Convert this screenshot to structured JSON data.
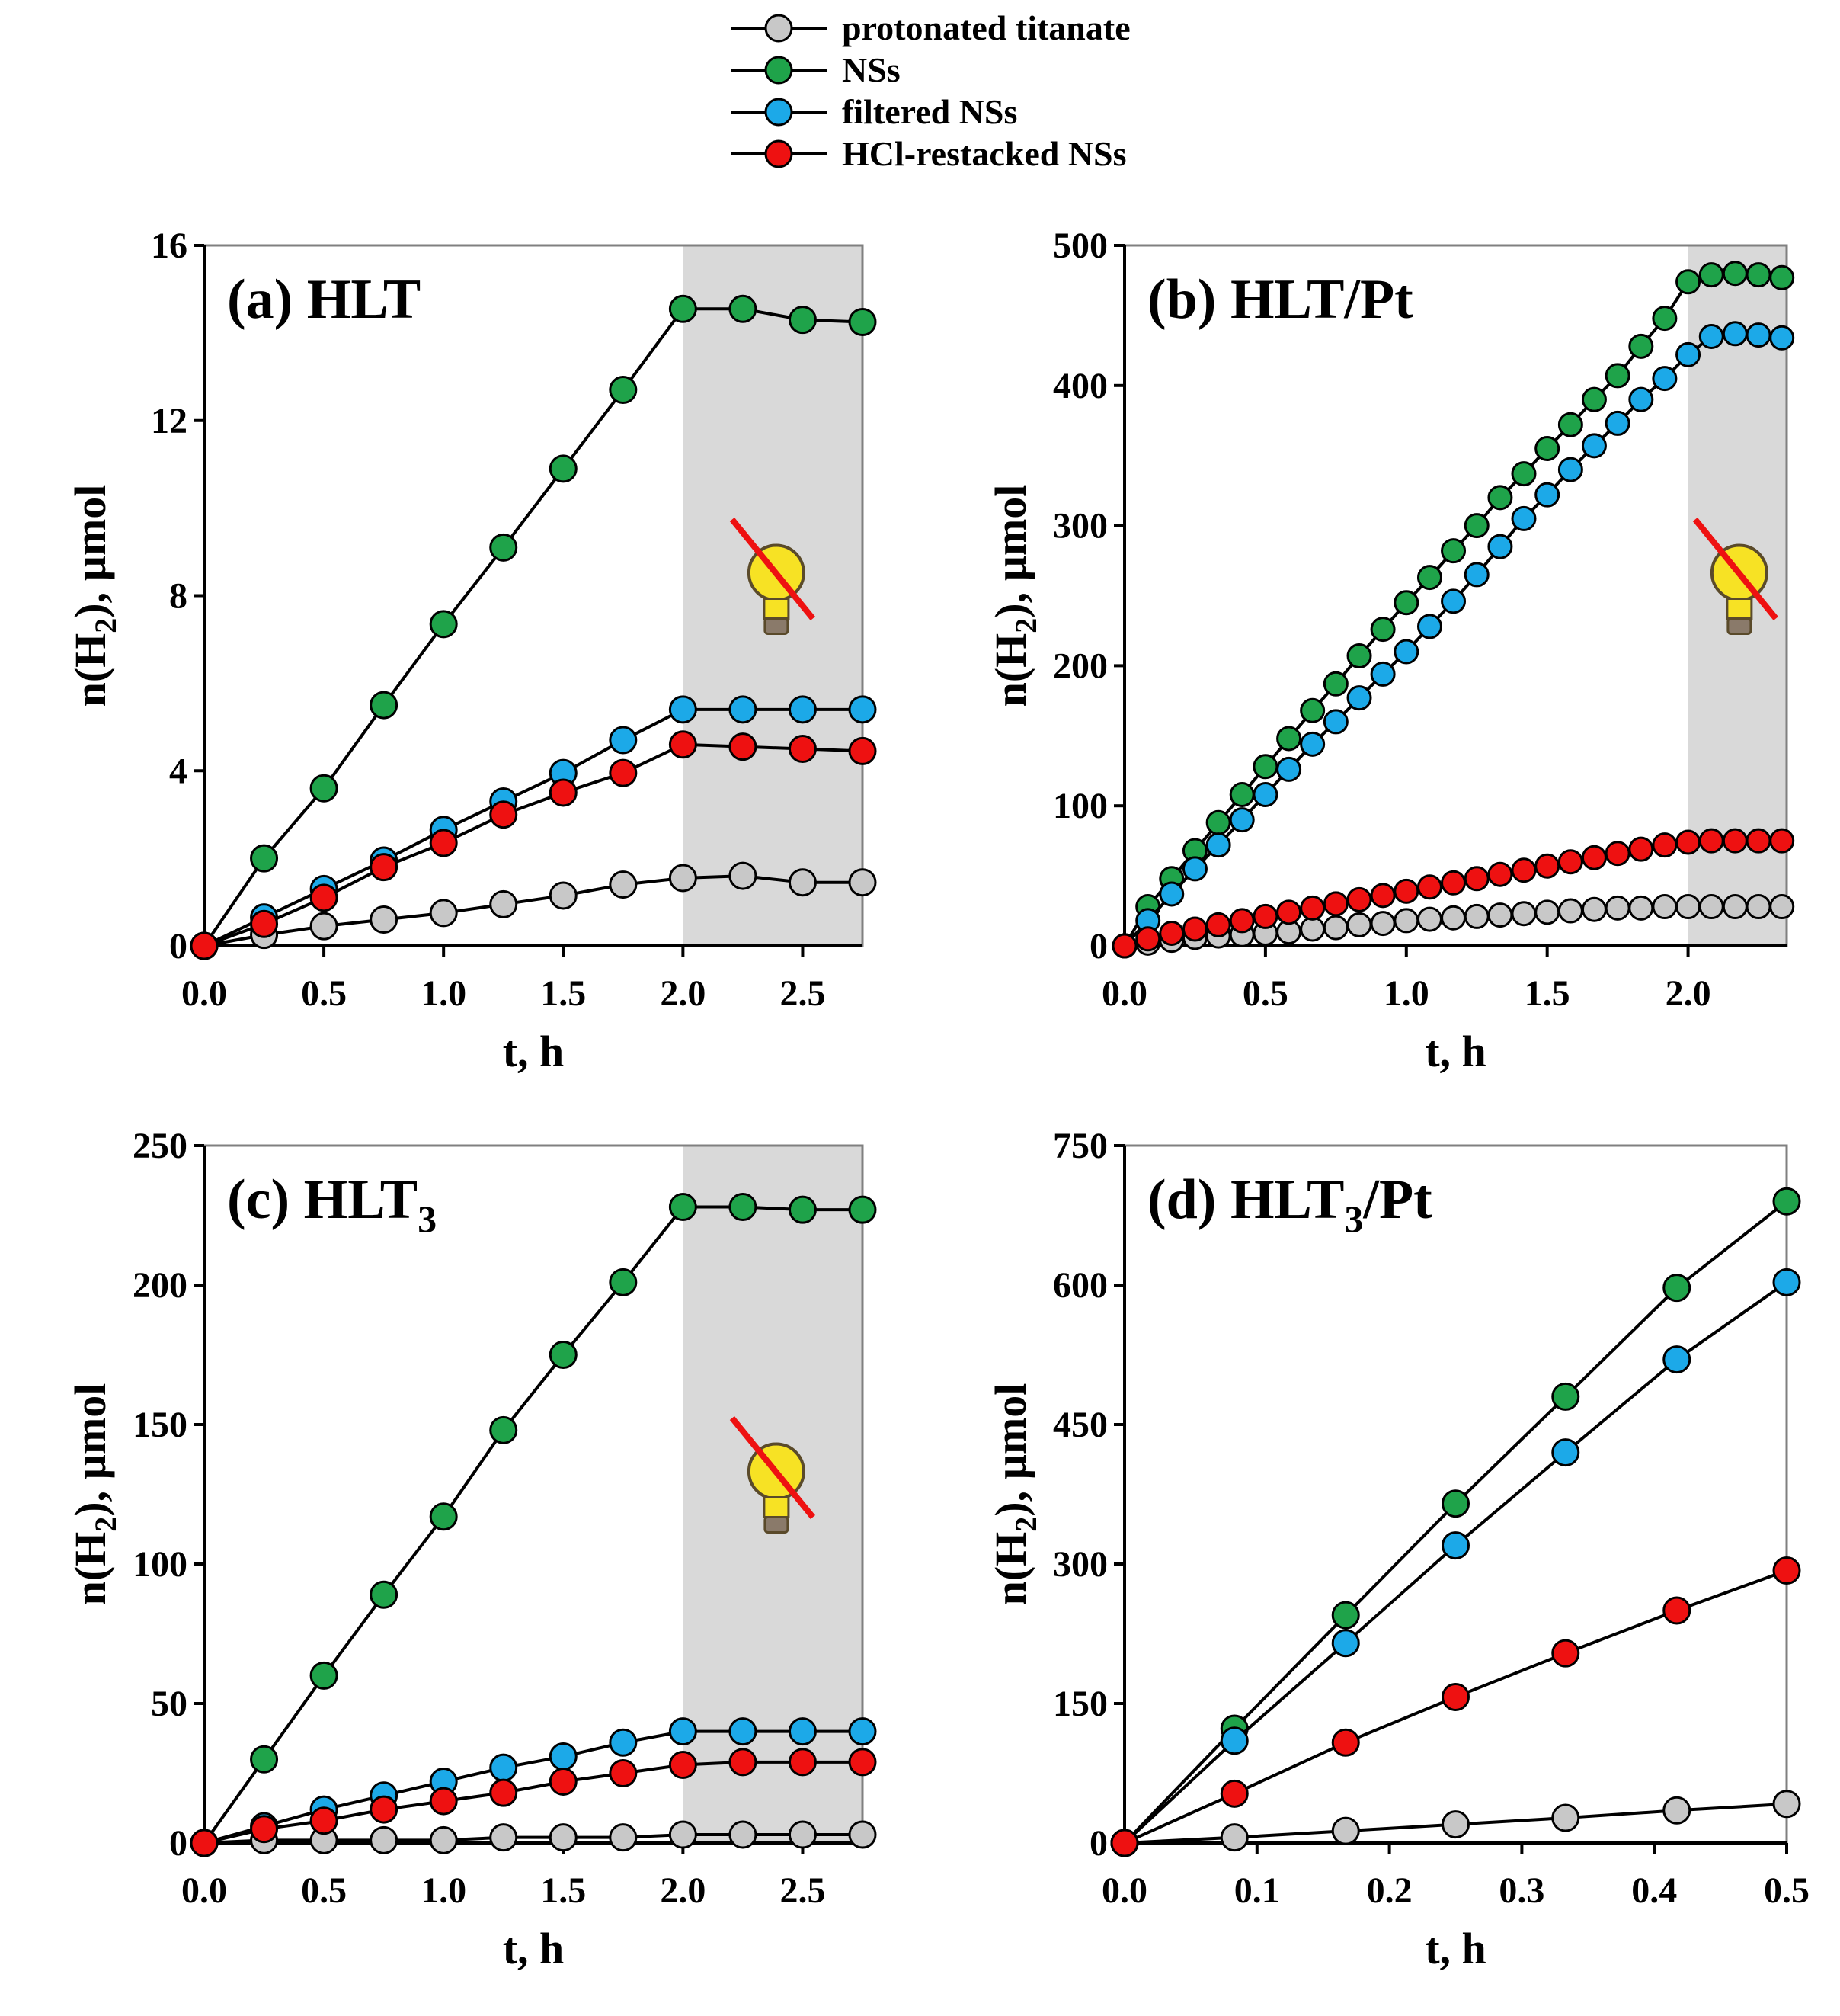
{
  "legend": [
    {
      "label": "protonated titanate",
      "color": "#c8c8c8"
    },
    {
      "label": "NSs",
      "color": "#1fa34a"
    },
    {
      "label": "filtered NSs",
      "color": "#1ca9e8"
    },
    {
      "label": "HCl-restacked NSs",
      "color": "#ee1111"
    }
  ],
  "chart_data": [
    {
      "type": "line",
      "title": "(a) HLT",
      "title_sub": "",
      "title_suffix": "",
      "xlabel": "t, h",
      "ylabel": "n(H",
      "ylabel_sub": "2",
      "ylabel_suffix": "), µmol",
      "xlim": [
        0,
        2.75
      ],
      "ylim": [
        0,
        16
      ],
      "xticks": [
        "0.0",
        "0.5",
        "1.0",
        "1.5",
        "2.0",
        "2.5"
      ],
      "yticks": [
        "0",
        "4",
        "8",
        "12",
        "16"
      ],
      "dark_region_from": 2.0,
      "x": [
        0,
        0.25,
        0.5,
        0.75,
        1.0,
        1.25,
        1.5,
        1.75,
        2.0,
        2.25,
        2.5,
        2.75
      ],
      "series": [
        {
          "name": "protonated titanate",
          "values": [
            0,
            0.25,
            0.45,
            0.6,
            0.75,
            0.95,
            1.15,
            1.4,
            1.55,
            1.6,
            1.45,
            1.45
          ]
        },
        {
          "name": "NSs",
          "values": [
            0,
            2.0,
            3.6,
            5.5,
            7.35,
            9.1,
            10.9,
            12.7,
            14.55,
            14.55,
            14.3,
            14.25
          ]
        },
        {
          "name": "filtered NSs",
          "values": [
            0,
            0.65,
            1.3,
            1.95,
            2.65,
            3.3,
            3.95,
            4.7,
            5.4,
            5.4,
            5.4,
            5.4
          ]
        },
        {
          "name": "HCl-restacked NSs",
          "values": [
            0,
            0.5,
            1.1,
            1.8,
            2.35,
            3.0,
            3.5,
            3.95,
            4.6,
            4.55,
            4.5,
            4.45
          ]
        }
      ]
    },
    {
      "type": "line",
      "title": "(b) HLT/Pt",
      "title_sub": "",
      "title_suffix": "",
      "xlabel": "t, h",
      "ylabel": "n(H",
      "ylabel_sub": "2",
      "ylabel_suffix": "), µmol",
      "xlim": [
        0,
        2.35
      ],
      "ylim": [
        0,
        500
      ],
      "xticks": [
        "0.0",
        "0.5",
        "1.0",
        "1.5",
        "2.0"
      ],
      "yticks": [
        "0",
        "100",
        "200",
        "300",
        "400",
        "500"
      ],
      "dark_region_from": 2.0,
      "x": [
        0,
        0.083,
        0.167,
        0.25,
        0.333,
        0.417,
        0.5,
        0.583,
        0.667,
        0.75,
        0.833,
        0.917,
        1.0,
        1.083,
        1.167,
        1.25,
        1.333,
        1.417,
        1.5,
        1.583,
        1.667,
        1.75,
        1.833,
        1.917,
        2.0,
        2.083,
        2.167,
        2.25,
        2.333
      ],
      "series": [
        {
          "name": "protonated titanate",
          "values": [
            0,
            2,
            4,
            6,
            7,
            8,
            9,
            10,
            12,
            13,
            15,
            16,
            18,
            19,
            20,
            21,
            22,
            23,
            24,
            25,
            26,
            27,
            27,
            28,
            28,
            28,
            28,
            28,
            28
          ]
        },
        {
          "name": "NSs",
          "values": [
            0,
            28,
            48,
            68,
            88,
            108,
            128,
            148,
            168,
            187,
            207,
            226,
            245,
            263,
            282,
            300,
            320,
            337,
            355,
            372,
            390,
            407,
            428,
            448,
            474,
            479,
            480,
            479,
            477
          ]
        },
        {
          "name": "filtered NSs",
          "values": [
            0,
            18,
            37,
            55,
            72,
            90,
            108,
            126,
            144,
            160,
            177,
            194,
            210,
            228,
            246,
            265,
            285,
            305,
            322,
            340,
            357,
            373,
            390,
            405,
            422,
            435,
            437,
            436,
            434
          ]
        },
        {
          "name": "HCl-restacked NSs",
          "values": [
            0,
            5,
            9,
            12,
            15,
            18,
            21,
            24,
            27,
            30,
            33,
            36,
            39,
            42,
            45,
            48,
            51,
            54,
            57,
            60,
            63,
            66,
            69,
            72,
            74,
            75,
            75,
            75,
            75
          ]
        }
      ]
    },
    {
      "type": "line",
      "title": "(c) HLT",
      "title_sub": "3",
      "title_suffix": "",
      "xlabel": "t, h",
      "ylabel": "n(H",
      "ylabel_sub": "2",
      "ylabel_suffix": "), µmol",
      "xlim": [
        0,
        2.75
      ],
      "ylim": [
        0,
        250
      ],
      "xticks": [
        "0.0",
        "0.5",
        "1.0",
        "1.5",
        "2.0",
        "2.5"
      ],
      "yticks": [
        "0",
        "50",
        "100",
        "150",
        "200",
        "250"
      ],
      "dark_region_from": 2.0,
      "x": [
        0,
        0.25,
        0.5,
        0.75,
        1.0,
        1.25,
        1.5,
        1.75,
        2.0,
        2.25,
        2.5,
        2.75
      ],
      "series": [
        {
          "name": "protonated titanate",
          "values": [
            0,
            1,
            1,
            1,
            1,
            2,
            2,
            2,
            3,
            3,
            3,
            3
          ]
        },
        {
          "name": "NSs",
          "values": [
            0,
            30,
            60,
            89,
            117,
            148,
            175,
            201,
            228,
            228,
            227,
            227
          ]
        },
        {
          "name": "filtered NSs",
          "values": [
            0,
            6,
            12,
            17,
            22,
            27,
            31,
            36,
            40,
            40,
            40,
            40
          ]
        },
        {
          "name": "HCl-restacked NSs",
          "values": [
            0,
            5,
            8,
            12,
            15,
            18,
            22,
            25,
            28,
            29,
            29,
            29
          ]
        }
      ]
    },
    {
      "type": "line",
      "title": "(d) HLT",
      "title_sub": "3",
      "title_suffix": "/Pt",
      "xlabel": "t, h",
      "ylabel": "n(H",
      "ylabel_sub": "2",
      "ylabel_suffix": "), µmol",
      "xlim": [
        0,
        0.5
      ],
      "ylim": [
        0,
        750
      ],
      "xticks": [
        "0.0",
        "0.1",
        "0.2",
        "0.3",
        "0.4",
        "0.5"
      ],
      "yticks": [
        "0",
        "150",
        "300",
        "450",
        "600",
        "750"
      ],
      "dark_region_from": null,
      "x": [
        0,
        0.083,
        0.167,
        0.25,
        0.333,
        0.417,
        0.5
      ],
      "series": [
        {
          "name": "protonated titanate",
          "values": [
            0,
            6,
            13,
            20,
            27,
            35,
            42
          ]
        },
        {
          "name": "NSs",
          "values": [
            0,
            123,
            245,
            365,
            480,
            597,
            690
          ]
        },
        {
          "name": "filtered NSs",
          "values": [
            0,
            110,
            215,
            320,
            420,
            520,
            603
          ]
        },
        {
          "name": "HCl-restacked NSs",
          "values": [
            0,
            53,
            108,
            157,
            204,
            250,
            293
          ]
        }
      ]
    }
  ]
}
